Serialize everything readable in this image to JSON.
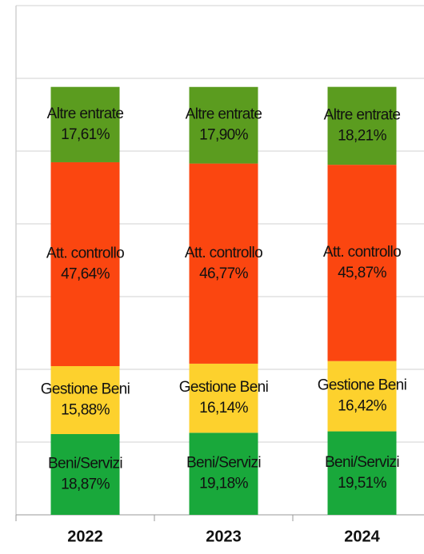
{
  "chart_data": {
    "type": "stacked_bar",
    "categories": [
      "2022",
      "2023",
      "2024"
    ],
    "series": [
      {
        "name": "Beni/Servizi",
        "color": "#19a83b",
        "values": [
          18.87,
          19.18,
          19.51
        ],
        "value_labels": [
          "18,87%",
          "19,18%",
          "19,51%"
        ]
      },
      {
        "name": "Gestione Beni",
        "color": "#fdd12d",
        "values": [
          15.88,
          16.14,
          16.42
        ],
        "value_labels": [
          "15,88%",
          "16,14%",
          "16,42%"
        ]
      },
      {
        "name": "Att. controllo",
        "color": "#fb4610",
        "values": [
          47.64,
          46.77,
          45.87
        ],
        "value_labels": [
          "47,64%",
          "46,77%",
          "45,87%"
        ]
      },
      {
        "name": "Altre entrate",
        "color": "#5b9c1f",
        "values": [
          17.61,
          17.9,
          18.21
        ],
        "value_labels": [
          "17,61%",
          "17,90%",
          "18,21%"
        ]
      }
    ],
    "ylim": [
      0,
      119
    ],
    "yticks": [
      0,
      17,
      34,
      51,
      68,
      85,
      102,
      119
    ],
    "grid": true
  }
}
